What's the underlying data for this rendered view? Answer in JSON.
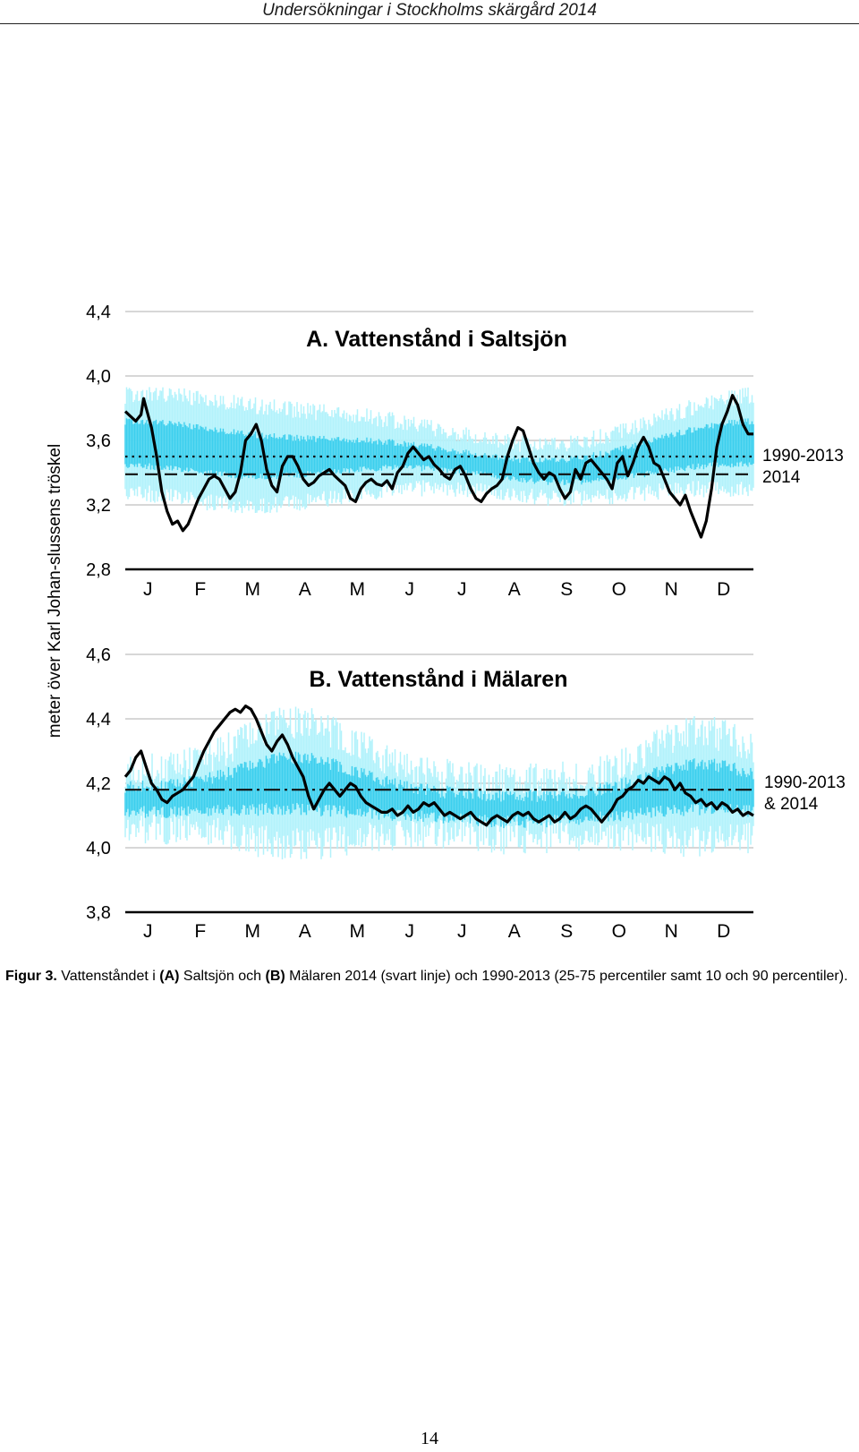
{
  "header": {
    "running_title": "Undersökningar i Stockholms skärgård 2014"
  },
  "figure": {
    "ylabel": "meter över Karl Johan-slussens tröskel",
    "months": [
      "J",
      "F",
      "M",
      "A",
      "M",
      "J",
      "J",
      "A",
      "S",
      "O",
      "N",
      "D"
    ]
  },
  "chart_data": [
    {
      "type": "line",
      "title": "A. Vattenstånd i Saltsjön",
      "ylim": [
        2.8,
        4.4
      ],
      "yticks": [
        "4,4",
        "4,0",
        "3,6",
        "3,2",
        "2,8"
      ],
      "ytick_values": [
        4.4,
        4.0,
        3.6,
        3.2,
        2.8
      ],
      "grid": true,
      "legend": [
        "1990-2013",
        "2014"
      ],
      "reference_lines": [
        {
          "label": "1990-2013",
          "style": "dotted",
          "y": 3.5
        },
        {
          "label": "2014",
          "style": "dashed",
          "y": 3.39
        }
      ],
      "series": [
        {
          "name": "2014",
          "x_month": [
            0.0,
            0.1,
            0.2,
            0.3,
            0.35,
            0.4,
            0.5,
            0.6,
            0.7,
            0.8,
            0.9,
            1.0,
            1.1,
            1.2,
            1.3,
            1.4,
            1.5,
            1.6,
            1.7,
            1.8,
            1.9,
            2.0,
            2.1,
            2.2,
            2.3,
            2.4,
            2.5,
            2.6,
            2.7,
            2.8,
            2.9,
            3.0,
            3.1,
            3.2,
            3.3,
            3.4,
            3.5,
            3.6,
            3.7,
            3.8,
            3.9,
            4.0,
            4.1,
            4.2,
            4.3,
            4.4,
            4.5,
            4.6,
            4.7,
            4.8,
            4.9,
            5.0,
            5.1,
            5.2,
            5.3,
            5.4,
            5.5,
            5.6,
            5.7,
            5.8,
            5.9,
            6.0,
            6.1,
            6.2,
            6.3,
            6.4,
            6.5,
            6.6,
            6.7,
            6.8,
            6.9,
            7.0,
            7.1,
            7.2,
            7.3,
            7.4,
            7.5,
            7.6,
            7.7,
            7.8,
            7.9,
            8.0,
            8.1,
            8.2,
            8.3,
            8.4,
            8.5,
            8.6,
            8.7,
            8.8,
            8.9,
            9.0,
            9.1,
            9.2,
            9.3,
            9.4,
            9.5,
            9.6,
            9.7,
            9.8,
            9.9,
            10.0,
            10.1,
            10.2,
            10.3,
            10.4,
            10.5,
            10.6,
            10.7,
            10.8,
            10.9,
            11.0,
            11.1,
            11.2,
            11.3,
            11.4,
            11.5,
            11.6,
            11.7,
            11.8,
            11.9,
            12.0
          ],
          "y": [
            3.78,
            3.75,
            3.72,
            3.76,
            3.86,
            3.8,
            3.68,
            3.5,
            3.28,
            3.16,
            3.08,
            3.1,
            3.04,
            3.08,
            3.16,
            3.24,
            3.3,
            3.36,
            3.38,
            3.36,
            3.3,
            3.24,
            3.28,
            3.4,
            3.6,
            3.64,
            3.7,
            3.6,
            3.42,
            3.32,
            3.28,
            3.44,
            3.5,
            3.5,
            3.44,
            3.36,
            3.32,
            3.34,
            3.38,
            3.4,
            3.42,
            3.38,
            3.35,
            3.32,
            3.24,
            3.22,
            3.3,
            3.34,
            3.36,
            3.33,
            3.32,
            3.35,
            3.3,
            3.4,
            3.44,
            3.52,
            3.56,
            3.52,
            3.48,
            3.5,
            3.45,
            3.42,
            3.38,
            3.36,
            3.42,
            3.44,
            3.38,
            3.3,
            3.24,
            3.22,
            3.27,
            3.3,
            3.32,
            3.36,
            3.5,
            3.6,
            3.68,
            3.66,
            3.56,
            3.46,
            3.4,
            3.36,
            3.4,
            3.38,
            3.3,
            3.24,
            3.28,
            3.42,
            3.36,
            3.46,
            3.48,
            3.44,
            3.4,
            3.36,
            3.3,
            3.46,
            3.5,
            3.38,
            3.46,
            3.56,
            3.62,
            3.56,
            3.46,
            3.44,
            3.36,
            3.28,
            3.24,
            3.2,
            3.26,
            3.16,
            3.08,
            3.0,
            3.1,
            3.3,
            3.56,
            3.7,
            3.78,
            3.88,
            3.82,
            3.7,
            3.64,
            3.64
          ]
        }
      ]
    },
    {
      "type": "line",
      "title": "B. Vattenstånd i Mälaren",
      "ylim": [
        3.8,
        4.6
      ],
      "yticks": [
        "4,6",
        "4,4",
        "4,2",
        "4,0",
        "3,8"
      ],
      "ytick_values": [
        4.6,
        4.4,
        4.2,
        4.0,
        3.8
      ],
      "grid": true,
      "legend": [
        "1990-2013",
        "& 2014"
      ],
      "reference_lines": [
        {
          "label": "1990-2013 & 2014",
          "style": "dash-dot",
          "y": 4.18
        }
      ],
      "series": [
        {
          "name": "2014",
          "x_month": [
            0.0,
            0.1,
            0.2,
            0.3,
            0.4,
            0.5,
            0.6,
            0.7,
            0.8,
            0.9,
            1.0,
            1.1,
            1.2,
            1.3,
            1.4,
            1.5,
            1.6,
            1.7,
            1.8,
            1.9,
            2.0,
            2.1,
            2.2,
            2.3,
            2.4,
            2.5,
            2.6,
            2.7,
            2.8,
            2.9,
            3.0,
            3.1,
            3.2,
            3.3,
            3.4,
            3.5,
            3.6,
            3.7,
            3.8,
            3.9,
            4.0,
            4.1,
            4.2,
            4.3,
            4.4,
            4.5,
            4.6,
            4.7,
            4.8,
            4.9,
            5.0,
            5.1,
            5.2,
            5.3,
            5.4,
            5.5,
            5.6,
            5.7,
            5.8,
            5.9,
            6.0,
            6.1,
            6.2,
            6.3,
            6.4,
            6.5,
            6.6,
            6.7,
            6.8,
            6.9,
            7.0,
            7.1,
            7.2,
            7.3,
            7.4,
            7.5,
            7.6,
            7.7,
            7.8,
            7.9,
            8.0,
            8.1,
            8.2,
            8.3,
            8.4,
            8.5,
            8.6,
            8.7,
            8.8,
            8.9,
            9.0,
            9.1,
            9.2,
            9.3,
            9.4,
            9.5,
            9.6,
            9.7,
            9.8,
            9.9,
            10.0,
            10.1,
            10.2,
            10.3,
            10.4,
            10.5,
            10.6,
            10.7,
            10.8,
            10.9,
            11.0,
            11.1,
            11.2,
            11.3,
            11.4,
            11.5,
            11.6,
            11.7,
            11.8,
            11.9,
            12.0
          ],
          "y": [
            4.22,
            4.24,
            4.28,
            4.3,
            4.25,
            4.2,
            4.18,
            4.15,
            4.14,
            4.16,
            4.17,
            4.18,
            4.2,
            4.22,
            4.26,
            4.3,
            4.33,
            4.36,
            4.38,
            4.4,
            4.42,
            4.43,
            4.42,
            4.44,
            4.43,
            4.4,
            4.36,
            4.32,
            4.3,
            4.33,
            4.35,
            4.32,
            4.28,
            4.25,
            4.22,
            4.16,
            4.12,
            4.15,
            4.18,
            4.2,
            4.18,
            4.16,
            4.18,
            4.2,
            4.19,
            4.16,
            4.14,
            4.13,
            4.12,
            4.11,
            4.11,
            4.12,
            4.1,
            4.11,
            4.13,
            4.11,
            4.12,
            4.14,
            4.13,
            4.14,
            4.12,
            4.1,
            4.11,
            4.1,
            4.09,
            4.1,
            4.11,
            4.09,
            4.08,
            4.07,
            4.09,
            4.1,
            4.09,
            4.08,
            4.1,
            4.11,
            4.1,
            4.11,
            4.09,
            4.08,
            4.09,
            4.1,
            4.08,
            4.09,
            4.11,
            4.09,
            4.1,
            4.12,
            4.13,
            4.12,
            4.1,
            4.08,
            4.1,
            4.12,
            4.15,
            4.16,
            4.18,
            4.19,
            4.21,
            4.2,
            4.22,
            4.21,
            4.2,
            4.22,
            4.21,
            4.18,
            4.2,
            4.17,
            4.16,
            4.14,
            4.15,
            4.13,
            4.14,
            4.12,
            4.14,
            4.13,
            4.11,
            4.12,
            4.1,
            4.11,
            4.1
          ]
        }
      ]
    }
  ],
  "caption": {
    "label": "Figur 3.",
    "t1": " Vattenståndet i ",
    "a": "(A)",
    "t2": " Saltsjön och ",
    "b": "(B)",
    "t3": " Mälaren 2014 (svart linje) och 1990-2013 (25-75 percentiler samt 10 och 90 percentiler)."
  },
  "page_number": "14"
}
